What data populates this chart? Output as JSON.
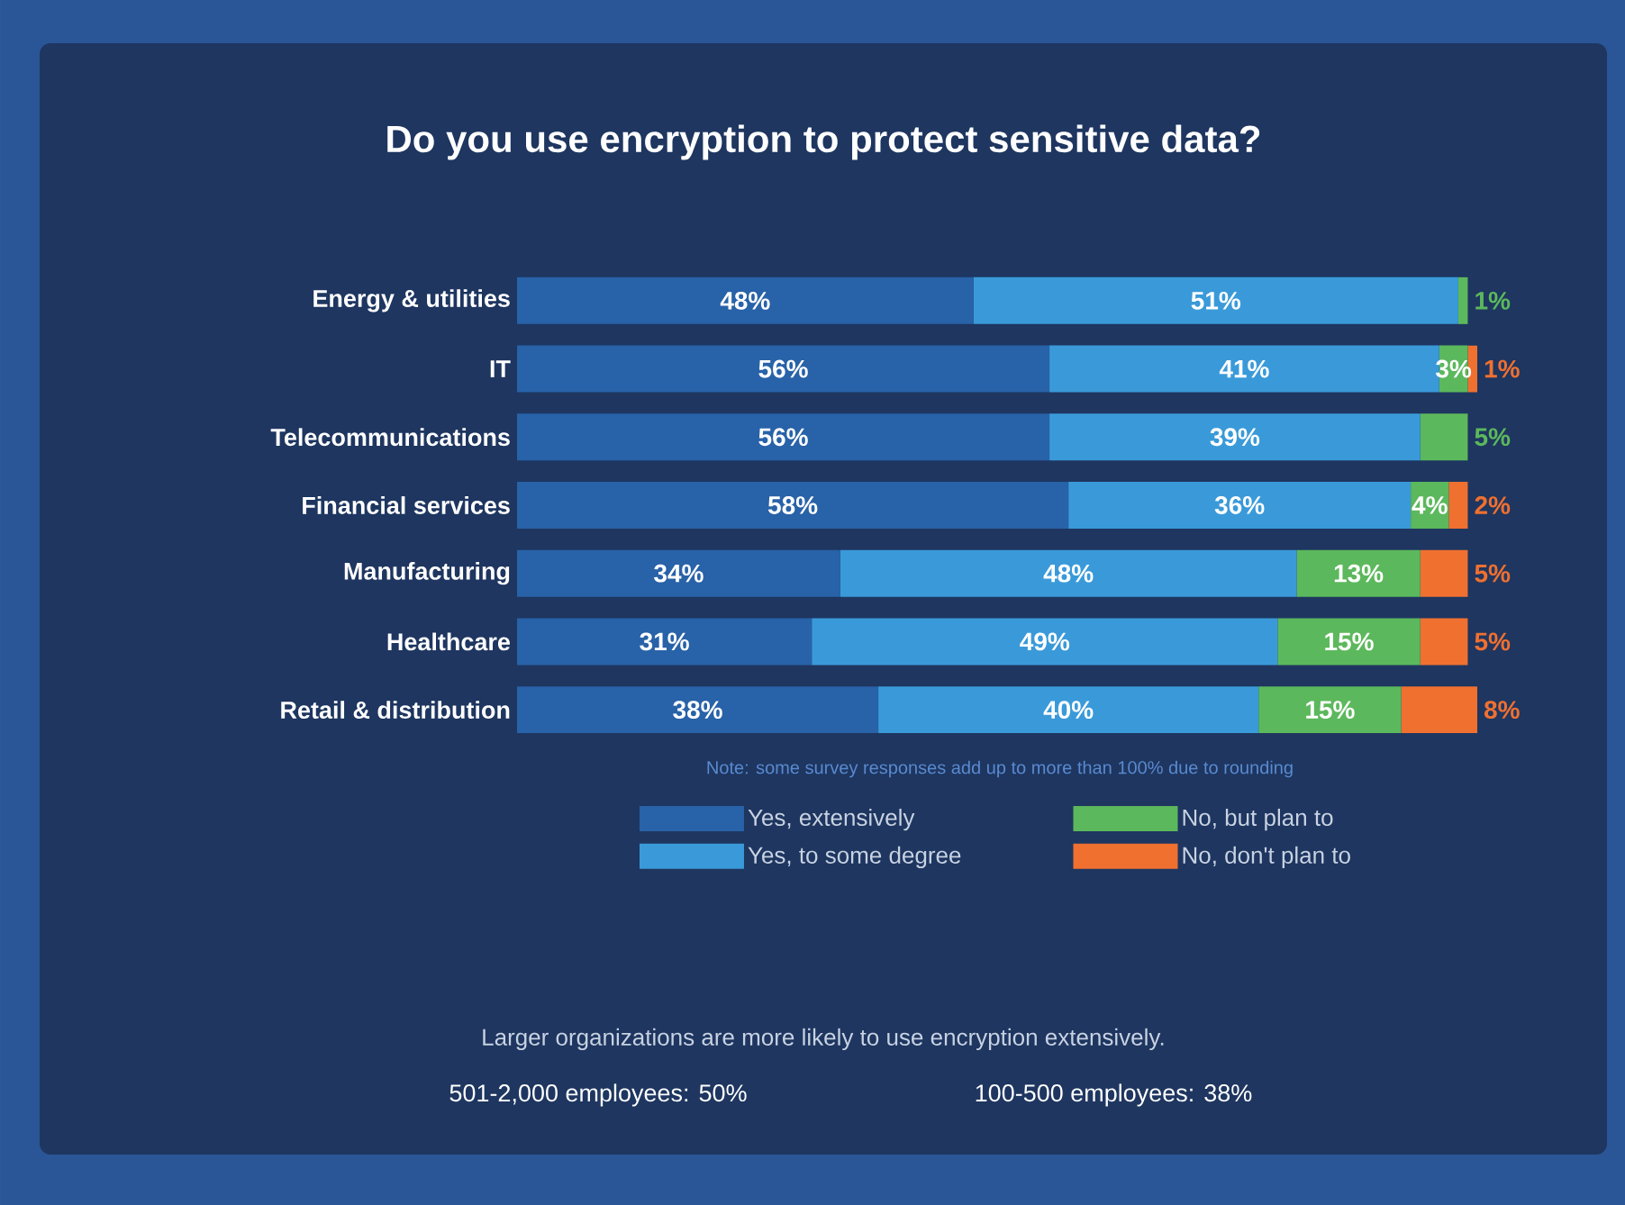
{
  "chart_data": {
    "type": "bar",
    "orientation": "horizontal",
    "stacked": true,
    "title": "Do you use encryption to protect sensitive data?",
    "categories": [
      "Energy & utilities",
      "IT",
      "Telecommunications",
      "Financial services",
      "Manufacturing",
      "Healthcare",
      "Retail & distribution"
    ],
    "series": [
      {
        "name": "Yes, extensively",
        "color": "#2862a8",
        "values": [
          48,
          56,
          56,
          58,
          34,
          31,
          38
        ],
        "value_labels": [
          "48%",
          "56%",
          "56%",
          "58%",
          "34%",
          "31%",
          "38%"
        ]
      },
      {
        "name": "Yes, to some degree",
        "color": "#3a9ad9",
        "values": [
          51,
          41,
          39,
          36,
          48,
          49,
          40
        ],
        "value_labels": [
          "51%",
          "41%",
          "39%",
          "36%",
          "48%",
          "49%",
          "40%"
        ]
      },
      {
        "name": "No, but plan to",
        "color": "#5cb85c",
        "values": [
          1,
          3,
          5,
          4,
          13,
          15,
          15
        ],
        "value_labels": [
          "1%",
          "3%",
          "5%",
          "4%",
          "13%",
          "15%",
          "15%"
        ]
      },
      {
        "name": "No, don't plan to",
        "color": "#f07030",
        "values": [
          0,
          1,
          0,
          2,
          5,
          5,
          8
        ],
        "value_labels": [
          null,
          "1%",
          null,
          "2%",
          "5%",
          "5%",
          "8%"
        ]
      }
    ],
    "tick_labels": "y",
    "legend": "bottom",
    "annotations": [
      "Note: some survey responses add up to more than 100% due to rounding",
      "Larger organizations are more likely to use encryption extensively.",
      "501-2,000 employees: 50%",
      "100-500 employees: 38%"
    ]
  }
}
